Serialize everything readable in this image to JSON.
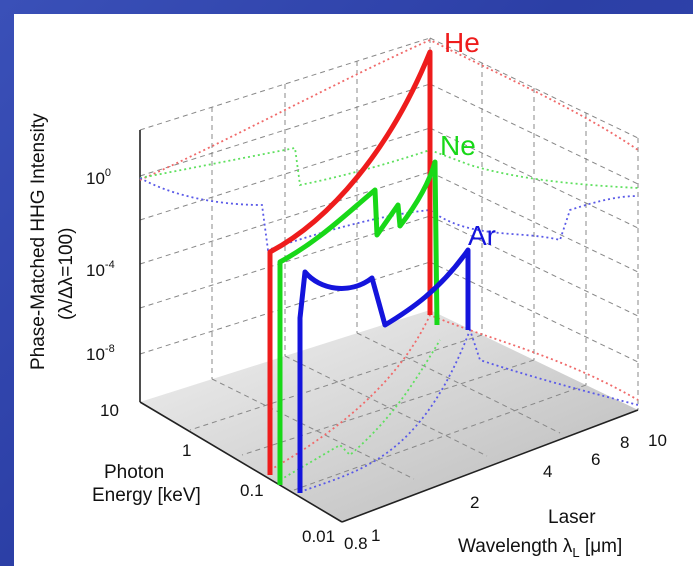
{
  "colors": {
    "He": "#ee1c1c",
    "Ne": "#18d818",
    "Ar": "#1414dc"
  },
  "chart_data": {
    "type": "line",
    "title": "",
    "ylabel": "Phase-Matched HHG Intensity",
    "ylabel2": "(λ/Δλ=100)",
    "xlabel": "Photon\nEnergy [keV]",
    "xlabel_line1": "Photon",
    "xlabel_line2": "Energy [keV]",
    "zlabel_line1": "Laser",
    "zlabel_line2": "Wavelength λ",
    "zlabel_sub": "L",
    "zlabel_unit": " [μm]",
    "y_scale": "log",
    "y_ticks": [
      "10",
      "10",
      "10"
    ],
    "y_tick_exponents": [
      "0",
      "-4",
      "-8"
    ],
    "energy_ticks": [
      "10",
      "1",
      "0.1",
      "0.01"
    ],
    "wavelength_ticks": [
      "0.8",
      "1",
      "2",
      "4",
      "6",
      "8",
      "10"
    ],
    "series": [
      {
        "name": "He",
        "label": "He"
      },
      {
        "name": "Ne",
        "label": "Ne"
      },
      {
        "name": "Ar",
        "label": "Ar"
      }
    ]
  }
}
